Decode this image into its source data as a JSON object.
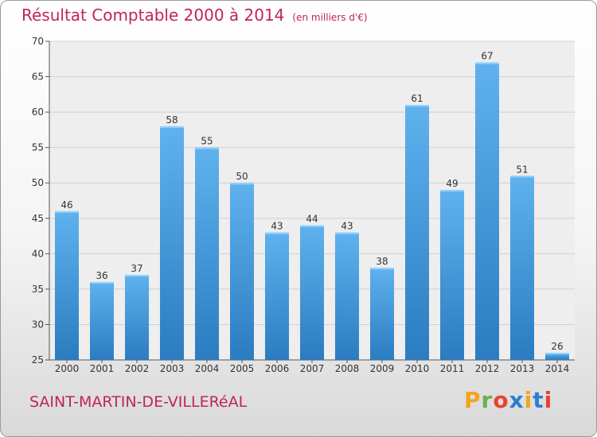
{
  "chart_data": {
    "type": "bar",
    "title": "Résultat Comptable 2000 à 2014",
    "unit_note": "(en milliers d'€)",
    "xlabel": "",
    "ylabel": "",
    "categories": [
      "2000",
      "2001",
      "2002",
      "2003",
      "2004",
      "2005",
      "2006",
      "2007",
      "2008",
      "2009",
      "2010",
      "2011",
      "2012",
      "2013",
      "2014"
    ],
    "values": [
      46,
      36,
      37,
      58,
      55,
      50,
      43,
      44,
      43,
      38,
      61,
      49,
      67,
      51,
      26
    ],
    "ylim": [
      25,
      70
    ],
    "yticks": [
      25,
      30,
      35,
      40,
      45,
      50,
      55,
      60,
      65,
      70
    ],
    "grid": true,
    "bar_color": "#4a9fe0"
  },
  "footer": {
    "place_name": "SAINT-MARTIN-DE-VILLERéAL",
    "logo": {
      "text": "Proxiti",
      "letter_colors": [
        "#f2a51a",
        "#6ab04c",
        "#e8432e",
        "#2a7fd4",
        "#f2a51a",
        "#2a7fd4",
        "#e8432e"
      ]
    }
  }
}
